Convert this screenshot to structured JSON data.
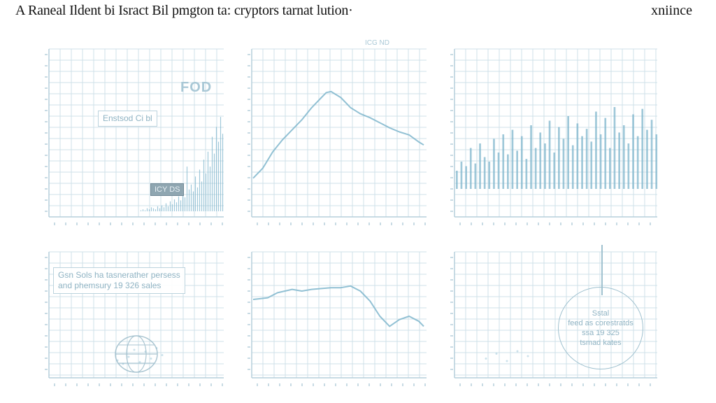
{
  "header": {
    "title": "A Raneal Ildent bi Isract Bil pmgton ta: cryptors tarnat lution·",
    "corner_text": "xniince"
  },
  "colors": {
    "grid": "#cfe1e9",
    "axis": "#b6cfdb",
    "series": "#7fb6cc",
    "text_faint": "#a9c8d6",
    "text_dark": "#111111"
  },
  "panels": {
    "p1": {
      "watermark": "FOD",
      "label": "Enstsod Ci bl",
      "tag": "ICY DS"
    },
    "p2": {
      "top_text": "ICG  ND"
    },
    "p4": {
      "note_line1": "Gsn Sols ha tasnerather persess",
      "note_line2": "and phemsury 19 326 sales"
    },
    "p6": {
      "circle_line1": "Sstal",
      "circle_line2": "feed as corestratds",
      "circle_line3": "ssa 19 325",
      "circle_line4": "tsmad kates"
    }
  },
  "chart_data": [
    {
      "type": "bar",
      "ylim": [
        0,
        100
      ],
      "values": [
        1,
        2,
        1,
        3,
        2,
        4,
        3,
        2,
        5,
        3,
        6,
        4,
        8,
        5,
        10,
        7,
        12,
        9,
        15,
        11,
        18,
        14,
        45,
        22,
        27,
        20,
        35,
        24,
        42,
        30,
        52,
        38,
        60,
        45,
        75,
        58,
        85,
        70,
        95,
        78
      ]
    },
    {
      "type": "line",
      "xlim": [
        0,
        35
      ],
      "ylim": [
        0,
        100
      ],
      "x": [
        0,
        2,
        4,
        6,
        8,
        10,
        12,
        14,
        15,
        16,
        18,
        20,
        22,
        24,
        26,
        28,
        30,
        32,
        34,
        35
      ],
      "y": [
        12,
        22,
        38,
        50,
        60,
        70,
        82,
        92,
        97,
        98,
        92,
        82,
        76,
        72,
        67,
        62,
        58,
        55,
        48,
        45
      ]
    },
    {
      "type": "bar",
      "ylim": [
        0,
        100
      ],
      "values": [
        20,
        30,
        25,
        45,
        28,
        50,
        35,
        30,
        55,
        40,
        60,
        38,
        65,
        42,
        58,
        33,
        70,
        45,
        62,
        50,
        75,
        40,
        68,
        55,
        80,
        48,
        72,
        58,
        66,
        52,
        85,
        60,
        78,
        45,
        90,
        62,
        70,
        50,
        82,
        58,
        88,
        65,
        76,
        60
      ]
    },
    {
      "type": "scatter",
      "ylim": [
        0,
        100
      ],
      "points": [
        [
          10,
          30
        ],
        [
          20,
          20
        ],
        [
          30,
          40
        ],
        [
          40,
          60
        ],
        [
          50,
          25
        ],
        [
          60,
          55
        ],
        [
          70,
          35
        ],
        [
          80,
          65
        ],
        [
          90,
          45
        ]
      ]
    },
    {
      "type": "line",
      "xlim": [
        0,
        35
      ],
      "ylim": [
        0,
        100
      ],
      "x": [
        0,
        3,
        5,
        8,
        10,
        12,
        14,
        16,
        18,
        20,
        22,
        24,
        26,
        28,
        30,
        32,
        34,
        35
      ],
      "y": [
        60,
        62,
        68,
        72,
        70,
        72,
        73,
        74,
        74,
        76,
        70,
        58,
        40,
        28,
        36,
        40,
        34,
        28
      ]
    },
    {
      "type": "scatter",
      "ylim": [
        0,
        100
      ],
      "points": [
        [
          15,
          25
        ],
        [
          30,
          35
        ],
        [
          45,
          20
        ],
        [
          60,
          40
        ],
        [
          75,
          30
        ]
      ]
    }
  ]
}
